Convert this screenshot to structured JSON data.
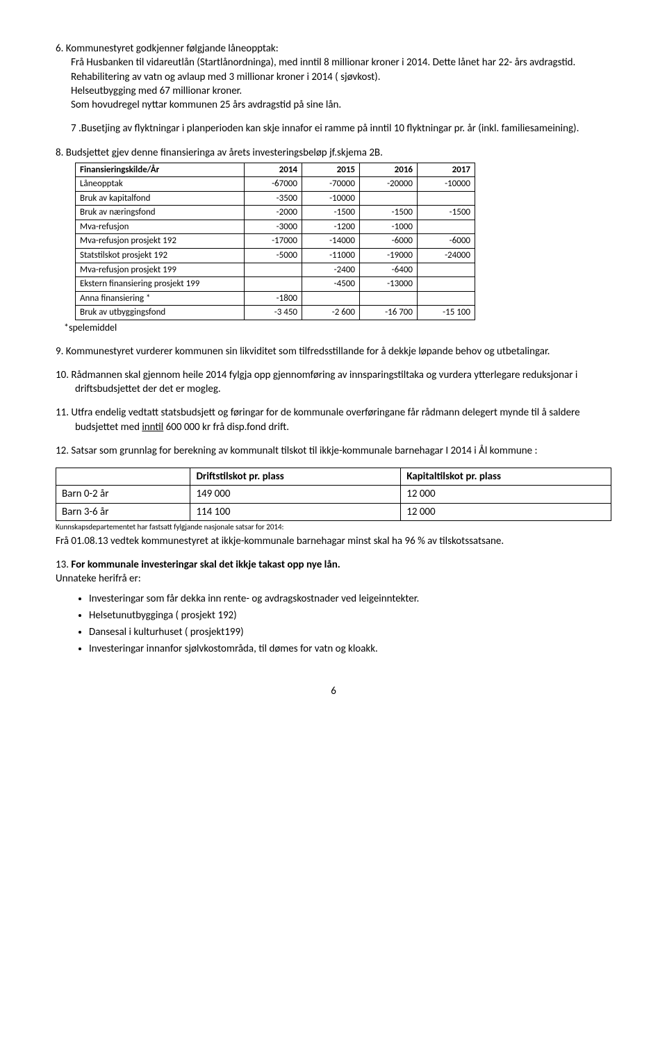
{
  "item6": {
    "lead": "6. Kommunestyret godkjenner følgjande låneopptak:",
    "l1": "Frå Husbanken til vidareutlån (Startlånordninga), med inntil 8 millionar kroner i 2014. Dette lånet har 22- års avdragstid.",
    "l2": "Rehabilitering av vatn og avlaup med 3 millionar kroner i 2014 ( sjøvkost).",
    "l3": "Helseutbygging med 67 millionar kroner.",
    "l4": "Som hovudregel nyttar kommunen 25 års avdragstid på sine lån.",
    "l5": "7 .Busetjing av flyktningar i planperioden kan skje innafor ei ramme på inntil 10 flyktningar pr. år (inkl. familiesameining)."
  },
  "item8": {
    "lead": "8. Budsjettet gjev denne finansieringa av årets investeringsbeløp jf.skjema 2B."
  },
  "finTable": {
    "headers": [
      "Finansieringskilde/År",
      "2014",
      "2015",
      "2016",
      "2017"
    ],
    "rows": [
      [
        "Låneopptak",
        "-67000",
        "-70000",
        "-20000",
        "-10000"
      ],
      [
        "Bruk av kapitalfond",
        "-3500",
        "-10000",
        "",
        ""
      ],
      [
        "Bruk av næringsfond",
        "-2000",
        "-1500",
        "-1500",
        "-1500"
      ],
      [
        "Mva-refusjon",
        "-3000",
        "-1200",
        "-1000",
        ""
      ],
      [
        "Mva-refusjon prosjekt 192",
        "-17000",
        "-14000",
        "-6000",
        "-6000"
      ],
      [
        "Statstilskot prosjekt 192",
        "-5000",
        "-11000",
        "-19000",
        "-24000"
      ],
      [
        "Mva-refusjon prosjekt 199",
        "",
        "-2400",
        "-6400",
        ""
      ],
      [
        "Ekstern finansiering prosjekt 199",
        "",
        "-4500",
        "-13000",
        ""
      ],
      [
        "Anna finansiering *",
        "-1800",
        "",
        "",
        ""
      ],
      [
        "Bruk av utbyggingsfond",
        "-3 450",
        "-2 600",
        "-16 700",
        "-15 100"
      ]
    ],
    "footnote": "*spelemiddel"
  },
  "item9": "9. Kommunestyret vurderer kommunen sin likviditet som tilfredsstillande for å dekkje løpande behov og utbetalingar.",
  "item10": "10. Rådmannen skal gjennom heile 2014 fylgja opp gjennomføring av innsparingstiltaka og vurdera ytterlegare reduksjonar i driftsbudsjettet der det er mogleg.",
  "item11_a": "11. Utfra endelig vedtatt statsbudsjett og føringar for de kommunale overføringane får rådmann delegert mynde til å saldere budsjettet med ",
  "item11_u": "inntil",
  "item11_b": " 600 000 kr frå disp.fond drift.",
  "item12": "12. Satsar som grunnlag for berekning av kommunalt tilskot til ikkje-kommunale barnehagar I 2014 i Ål kommune :",
  "driftTable": {
    "headers": [
      "",
      "Driftstilskot pr. plass",
      "Kapitaltilskot pr. plass"
    ],
    "rows": [
      [
        "Barn 0-2 år",
        "149 000",
        "12 000"
      ],
      [
        "Barn 3-6 år",
        "114 100",
        "12 000"
      ]
    ]
  },
  "kunnskap": "Kunnskapsdepartementet har fastsatt fylgjande nasjonale satsar for 2014:",
  "fra0108": "Frå 01.08.13 vedtek kommunestyret at ikkje-kommunale barnehagar minst skal ha 96 % av tilskotssatsane.",
  "item13a": "13. ",
  "item13b": "For kommunale investeringar skal det ikkje takast opp nye lån.",
  "unnateke": "Unnateke herifrå er:",
  "bullets": [
    "Investeringar som får dekka inn rente- og avdragskostnader ved leigeinntekter.",
    "Helsetunutbygginga ( prosjekt 192)",
    "Dansesal i kulturhuset ( prosjekt199)",
    "Investeringar innanfor sjølvkostområda, til dømes for vatn og kloakk."
  ],
  "pageNumber": "6"
}
